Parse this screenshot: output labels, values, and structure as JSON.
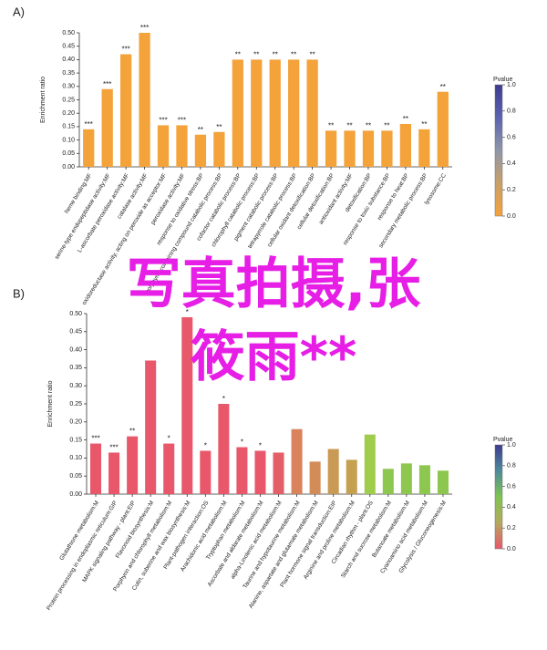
{
  "chart_data": [
    {
      "type": "bar",
      "label": "A)",
      "ylabel": "Enrichment ratio",
      "color": "#f4a23a",
      "categories": [
        "heme binding:MF",
        "serine-type endopeptidase activity:MF",
        "L-ascorbate peroxidase activity:MF",
        "catalase activity:MF",
        "oxidoreductase activity, acting on peroxide as acceptor:MF",
        "peroxidase activity:MF",
        "response to oxidative stress:BP",
        "porphyrin-containing compound catabolic process:BP",
        "cofactor catabolic process:BP",
        "chlorophyll catabolic process:BP",
        "pigment catabolic process:BP",
        "tetrapyrrole catabolic process:BP",
        "cellular oxidant detoxification:BP",
        "cellular detoxification:BP",
        "antioxidant activity:MF",
        "detoxification:BP",
        "response to toxic substance:BP",
        "response to heat:BP",
        "secondary metabolic process:BP",
        "lysosome:CC"
      ],
      "values": [
        0.14,
        0.29,
        0.42,
        0.5,
        0.155,
        0.155,
        0.12,
        0.13,
        0.4,
        0.4,
        0.4,
        0.4,
        0.4,
        0.135,
        0.135,
        0.135,
        0.135,
        0.16,
        0.14,
        0.28
      ],
      "annotations": [
        "***",
        "***",
        "***",
        "***",
        "***",
        "***",
        "**",
        "**",
        "**",
        "**",
        "**",
        "**",
        "**",
        "**",
        "**",
        "**",
        "**",
        "**",
        "**",
        "**"
      ],
      "ylim": [
        0,
        0.5
      ],
      "yticks": [
        {
          "value": 0,
          "label": "0.00"
        },
        {
          "value": 0.05,
          "label": "0.05"
        },
        {
          "value": 0.1,
          "label": "0.10"
        },
        {
          "value": 0.15,
          "label": "0.15"
        },
        {
          "value": 0.2,
          "label": "0.20"
        },
        {
          "value": 0.25,
          "label": "0.25"
        },
        {
          "value": 0.3,
          "label": "0.30"
        },
        {
          "value": 0.35,
          "label": "0.35"
        },
        {
          "value": 0.4,
          "label": "0.40"
        },
        {
          "value": 0.45,
          "label": "0.45"
        },
        {
          "value": 0.5,
          "label": "0.50"
        }
      ],
      "colorbar": {
        "title": "Pvalue",
        "lim": [
          0,
          1
        ],
        "colors": [
          "#f4a23a",
          "#c9a06a",
          "#8f96a8",
          "#5b64b0",
          "#3d3b8e"
        ],
        "ticks": [
          {
            "value": 0,
            "label": "0.0"
          },
          {
            "value": 0.2,
            "label": "0.2"
          },
          {
            "value": 0.4,
            "label": "0.4"
          },
          {
            "value": 0.6,
            "label": "0.6"
          },
          {
            "value": 0.8,
            "label": "0.8"
          },
          {
            "value": 1,
            "label": "1.0"
          }
        ]
      }
    },
    {
      "type": "bar",
      "label": "B)",
      "ylabel": "Enrichment ratio",
      "categories": [
        "Glutathione metabolism:M",
        "Protein processing in endoplasmic reticulum:GIP",
        "MAPK signaling pathway - plant:EIP",
        "Flavonoid biosynthesis:M",
        "Porphyrin and chlorophyll metabolism:M",
        "Cutin, suberine and wax biosynthesis:M",
        "Plant-pathogen interaction:OS",
        "Arachidonic acid metabolism:M",
        "Tryptophan metabolism:M",
        "Ascorbate and aldarate metabolism:M",
        "alpha-Linolenic acid metabolism:M",
        "Taurine and hypotaurine metabolism:M",
        "Alanine, aspartate and glutamate metabolism:M",
        "Plant hormone signal transduction:EIP",
        "Arginine and proline metabolism:M",
        "Circadian rhythm - plant:OS",
        "Starch and sucrose metabolism:M",
        "Butanoate metabolism:M",
        "Cyanoamino acid metabolism:M",
        "Glycolysis / Gluconeogenesis:M"
      ],
      "values": [
        0.14,
        0.115,
        0.16,
        0.37,
        0.14,
        0.49,
        0.12,
        0.25,
        0.13,
        0.12,
        0.115,
        0.18,
        0.09,
        0.125,
        0.095,
        0.165,
        0.07,
        0.085,
        0.08,
        0.065
      ],
      "colors": [
        "#e8576a",
        "#e8576a",
        "#e8576a",
        "#e8576a",
        "#e8576a",
        "#e8576a",
        "#e8576a",
        "#e8576a",
        "#e8576a",
        "#e8576a",
        "#e35e66",
        "#d9825b",
        "#d28c58",
        "#c99a55",
        "#c4a050",
        "#9fcc4a",
        "#8dc74f",
        "#8dc74f",
        "#8dc74f",
        "#8dc74f"
      ],
      "annotations": [
        "***",
        "***",
        "**",
        null,
        "*",
        "*",
        "*",
        "*",
        "*",
        "*",
        null,
        null,
        null,
        null,
        null,
        null,
        null,
        null,
        null,
        null
      ],
      "ylim": [
        0,
        0.5
      ],
      "yticks": [
        {
          "value": 0,
          "label": "0.00"
        },
        {
          "value": 0.05,
          "label": "0.05"
        },
        {
          "value": 0.1,
          "label": "0.10"
        },
        {
          "value": 0.15,
          "label": "0.15"
        },
        {
          "value": 0.2,
          "label": "0.20"
        },
        {
          "value": 0.25,
          "label": "0.25"
        },
        {
          "value": 0.3,
          "label": "0.30"
        },
        {
          "value": 0.35,
          "label": "0.35"
        },
        {
          "value": 0.4,
          "label": "0.40"
        },
        {
          "value": 0.45,
          "label": "0.45"
        },
        {
          "value": 0.5,
          "label": "0.50"
        }
      ],
      "colorbar": {
        "title": "Pvalue",
        "lim": [
          0,
          1
        ],
        "colors": [
          "#e8576a",
          "#b4a860",
          "#7fc451",
          "#4f8a9a",
          "#3d3b8e"
        ],
        "ticks": [
          {
            "value": 0,
            "label": "0.0"
          },
          {
            "value": 0.2,
            "label": "0.2"
          },
          {
            "value": 0.4,
            "label": "0.4"
          },
          {
            "value": 0.6,
            "label": "0.6"
          },
          {
            "value": 0.8,
            "label": "0.8"
          },
          {
            "value": 1,
            "label": "1.0"
          }
        ]
      }
    }
  ],
  "overlay": [
    "写真拍摄,张",
    "筱雨**"
  ]
}
